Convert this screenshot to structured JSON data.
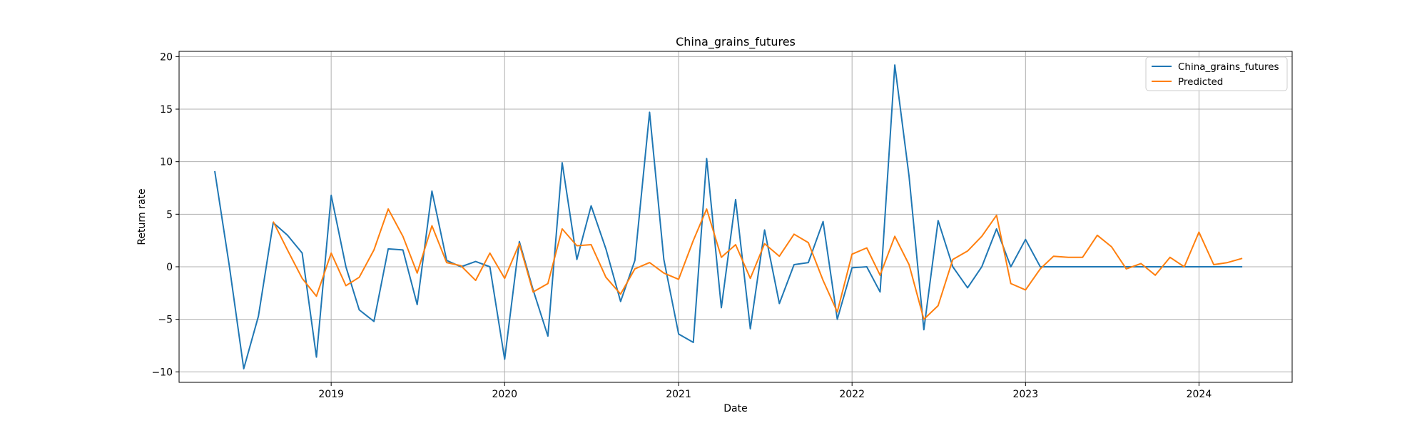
{
  "chart_data": {
    "type": "line",
    "title": "China_grains_futures",
    "xlabel": "Date",
    "ylabel": "Return rate",
    "xlim": [
      "2018-02-15",
      "2024-07-15"
    ],
    "ylim": [
      -11,
      20.5
    ],
    "grid": true,
    "legend_position": "top-right",
    "x_ticks": [
      {
        "date": "2019-01-01",
        "label": "2019"
      },
      {
        "date": "2020-01-01",
        "label": "2020"
      },
      {
        "date": "2021-01-01",
        "label": "2021"
      },
      {
        "date": "2022-01-01",
        "label": "2022"
      },
      {
        "date": "2023-01-01",
        "label": "2023"
      },
      {
        "date": "2024-01-01",
        "label": "2024"
      }
    ],
    "y_ticks": [
      -10,
      -5,
      0,
      5,
      10,
      15,
      20
    ],
    "series": [
      {
        "name": "China_grains_futures",
        "color": "#1f77b4",
        "points": [
          [
            "2018-05-01",
            9.1
          ],
          [
            "2018-06-01",
            0.0
          ],
          [
            "2018-07-01",
            -9.7
          ],
          [
            "2018-08-01",
            -4.7
          ],
          [
            "2018-09-01",
            4.2
          ],
          [
            "2018-10-01",
            3.0
          ],
          [
            "2018-11-01",
            1.3
          ],
          [
            "2018-12-01",
            -8.6
          ],
          [
            "2019-01-01",
            6.8
          ],
          [
            "2019-02-01",
            0.0
          ],
          [
            "2019-03-01",
            -4.1
          ],
          [
            "2019-04-01",
            -5.2
          ],
          [
            "2019-05-01",
            1.7
          ],
          [
            "2019-06-01",
            1.6
          ],
          [
            "2019-07-01",
            -3.6
          ],
          [
            "2019-08-01",
            7.2
          ],
          [
            "2019-09-01",
            0.6
          ],
          [
            "2019-10-01",
            0.0
          ],
          [
            "2019-11-01",
            0.5
          ],
          [
            "2019-12-01",
            0.0
          ],
          [
            "2020-01-01",
            -8.8
          ],
          [
            "2020-02-01",
            2.4
          ],
          [
            "2020-03-01",
            -2.2
          ],
          [
            "2020-04-01",
            -6.6
          ],
          [
            "2020-05-01",
            9.9
          ],
          [
            "2020-06-01",
            0.7
          ],
          [
            "2020-07-01",
            5.8
          ],
          [
            "2020-08-01",
            1.7
          ],
          [
            "2020-09-01",
            -3.3
          ],
          [
            "2020-10-01",
            0.6
          ],
          [
            "2020-11-01",
            14.7
          ],
          [
            "2020-12-01",
            0.7
          ],
          [
            "2021-01-01",
            -6.4
          ],
          [
            "2021-02-01",
            -7.2
          ],
          [
            "2021-03-01",
            10.3
          ],
          [
            "2021-04-01",
            -3.9
          ],
          [
            "2021-05-01",
            6.4
          ],
          [
            "2021-06-01",
            -5.9
          ],
          [
            "2021-07-01",
            3.5
          ],
          [
            "2021-08-01",
            -3.5
          ],
          [
            "2021-09-01",
            0.2
          ],
          [
            "2021-10-01",
            0.4
          ],
          [
            "2021-11-01",
            4.3
          ],
          [
            "2021-12-01",
            -5.0
          ],
          [
            "2022-01-01",
            -0.1
          ],
          [
            "2022-02-01",
            0.0
          ],
          [
            "2022-03-01",
            -2.4
          ],
          [
            "2022-04-01",
            19.2
          ],
          [
            "2022-05-01",
            8.6
          ],
          [
            "2022-06-01",
            -6.0
          ],
          [
            "2022-07-01",
            4.4
          ],
          [
            "2022-08-01",
            0.0
          ],
          [
            "2022-09-01",
            -2.0
          ],
          [
            "2022-10-01",
            0.0
          ],
          [
            "2022-11-01",
            3.6
          ],
          [
            "2022-12-01",
            0.0
          ],
          [
            "2023-01-01",
            2.6
          ],
          [
            "2023-02-01",
            0.0
          ],
          [
            "2023-03-01",
            0.0
          ],
          [
            "2023-04-01",
            0.0
          ],
          [
            "2023-05-01",
            0.0
          ],
          [
            "2023-06-01",
            0.0
          ],
          [
            "2023-07-01",
            0.0
          ],
          [
            "2023-08-01",
            0.0
          ],
          [
            "2023-09-01",
            0.0
          ],
          [
            "2023-10-01",
            0.0
          ],
          [
            "2023-11-01",
            0.0
          ],
          [
            "2023-12-01",
            0.0
          ],
          [
            "2024-01-01",
            0.0
          ],
          [
            "2024-02-01",
            0.0
          ],
          [
            "2024-03-01",
            0.0
          ],
          [
            "2024-04-01",
            0.0
          ]
        ]
      },
      {
        "name": "Predicted",
        "color": "#ff7f0e",
        "points": [
          [
            "2018-09-01",
            4.3
          ],
          [
            "2018-10-01",
            1.6
          ],
          [
            "2018-11-01",
            -1.1
          ],
          [
            "2018-12-01",
            -2.8
          ],
          [
            "2019-01-01",
            1.3
          ],
          [
            "2019-02-01",
            -1.8
          ],
          [
            "2019-03-01",
            -1.0
          ],
          [
            "2019-04-01",
            1.6
          ],
          [
            "2019-05-01",
            5.5
          ],
          [
            "2019-06-01",
            2.9
          ],
          [
            "2019-07-01",
            -0.6
          ],
          [
            "2019-08-01",
            3.9
          ],
          [
            "2019-09-01",
            0.4
          ],
          [
            "2019-10-01",
            0.1
          ],
          [
            "2019-11-01",
            -1.3
          ],
          [
            "2019-12-01",
            1.3
          ],
          [
            "2020-01-01",
            -1.1
          ],
          [
            "2020-02-01",
            2.2
          ],
          [
            "2020-03-01",
            -2.4
          ],
          [
            "2020-04-01",
            -1.6
          ],
          [
            "2020-05-01",
            3.6
          ],
          [
            "2020-06-01",
            2.0
          ],
          [
            "2020-07-01",
            2.1
          ],
          [
            "2020-08-01",
            -1.0
          ],
          [
            "2020-09-01",
            -2.6
          ],
          [
            "2020-10-01",
            -0.2
          ],
          [
            "2020-11-01",
            0.4
          ],
          [
            "2020-12-01",
            -0.6
          ],
          [
            "2021-01-01",
            -1.2
          ],
          [
            "2021-02-01",
            2.5
          ],
          [
            "2021-03-01",
            5.5
          ],
          [
            "2021-04-01",
            0.9
          ],
          [
            "2021-05-01",
            2.1
          ],
          [
            "2021-06-01",
            -1.1
          ],
          [
            "2021-07-01",
            2.2
          ],
          [
            "2021-08-01",
            1.0
          ],
          [
            "2021-09-01",
            3.1
          ],
          [
            "2021-10-01",
            2.3
          ],
          [
            "2021-11-01",
            -1.3
          ],
          [
            "2021-12-01",
            -4.3
          ],
          [
            "2022-01-01",
            1.2
          ],
          [
            "2022-02-01",
            1.8
          ],
          [
            "2022-03-01",
            -0.8
          ],
          [
            "2022-04-01",
            2.9
          ],
          [
            "2022-05-01",
            0.2
          ],
          [
            "2022-06-01",
            -5.0
          ],
          [
            "2022-07-01",
            -3.7
          ],
          [
            "2022-08-01",
            0.7
          ],
          [
            "2022-09-01",
            1.5
          ],
          [
            "2022-10-01",
            2.9
          ],
          [
            "2022-11-01",
            4.9
          ],
          [
            "2022-12-01",
            -1.6
          ],
          [
            "2023-01-01",
            -2.2
          ],
          [
            "2023-02-01",
            -0.2
          ],
          [
            "2023-03-01",
            1.0
          ],
          [
            "2023-04-01",
            0.9
          ],
          [
            "2023-05-01",
            0.9
          ],
          [
            "2023-06-01",
            3.0
          ],
          [
            "2023-07-01",
            1.9
          ],
          [
            "2023-08-01",
            -0.2
          ],
          [
            "2023-09-01",
            0.3
          ],
          [
            "2023-10-01",
            -0.8
          ],
          [
            "2023-11-01",
            0.9
          ],
          [
            "2023-12-01",
            0.0
          ],
          [
            "2024-01-01",
            3.3
          ],
          [
            "2024-02-01",
            0.2
          ],
          [
            "2024-03-01",
            0.4
          ],
          [
            "2024-04-01",
            0.8
          ]
        ]
      }
    ]
  }
}
